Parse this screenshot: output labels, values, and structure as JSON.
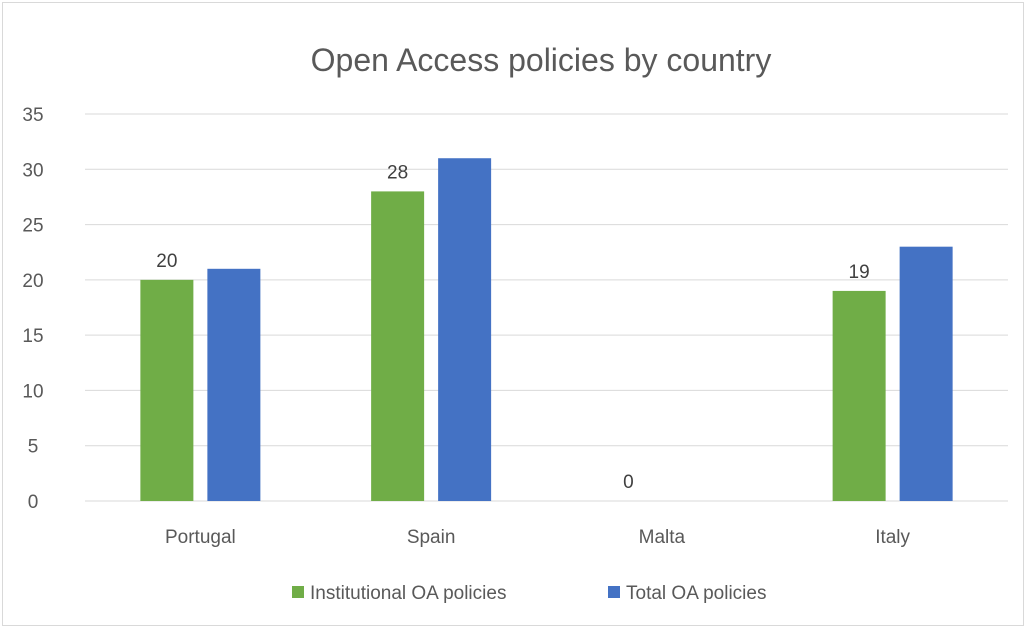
{
  "chart_data": {
    "type": "bar",
    "title": "Open Access policies by country",
    "categories": [
      "Portugal",
      "Spain",
      "Malta",
      "Italy"
    ],
    "series": [
      {
        "name": "Institutional OA policies",
        "color": "#70ad47",
        "values": [
          20,
          28,
          0,
          19
        ],
        "data_labels": [
          "20",
          "28",
          "0",
          "19"
        ]
      },
      {
        "name": "Total OA policies",
        "color": "#4472c4",
        "values": [
          21,
          31,
          0,
          23
        ],
        "data_labels": null
      }
    ],
    "ylim": [
      0,
      35
    ],
    "yticks": [
      "0",
      "5",
      "10",
      "15",
      "20",
      "25",
      "30",
      "35"
    ],
    "grid": true,
    "legend_position": "bottom"
  }
}
